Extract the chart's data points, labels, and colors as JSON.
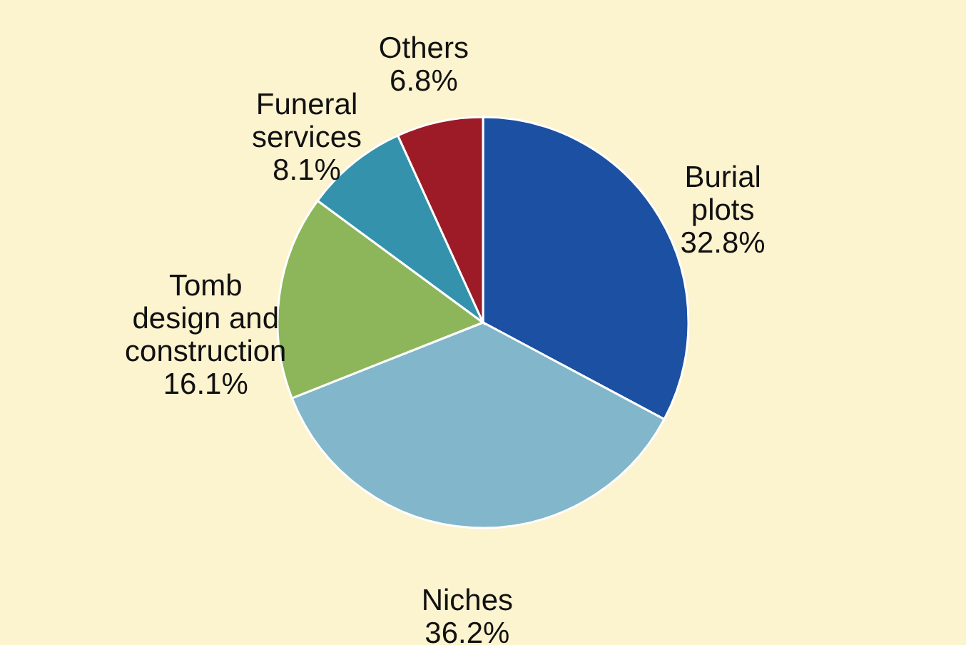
{
  "chart_data": {
    "type": "pie",
    "categories": [
      "Burial plots",
      "Niches",
      "Tomb design and construction",
      "Funeral services",
      "Others"
    ],
    "values": [
      32.8,
      36.2,
      16.1,
      8.1,
      6.8
    ],
    "colors": [
      "#1b50a2",
      "#82b6ca",
      "#8db65b",
      "#3492ad",
      "#9c1b27"
    ],
    "value_labels": [
      "32.8%",
      "36.2%",
      "16.1%",
      "8.1%",
      "6.8%"
    ]
  }
}
